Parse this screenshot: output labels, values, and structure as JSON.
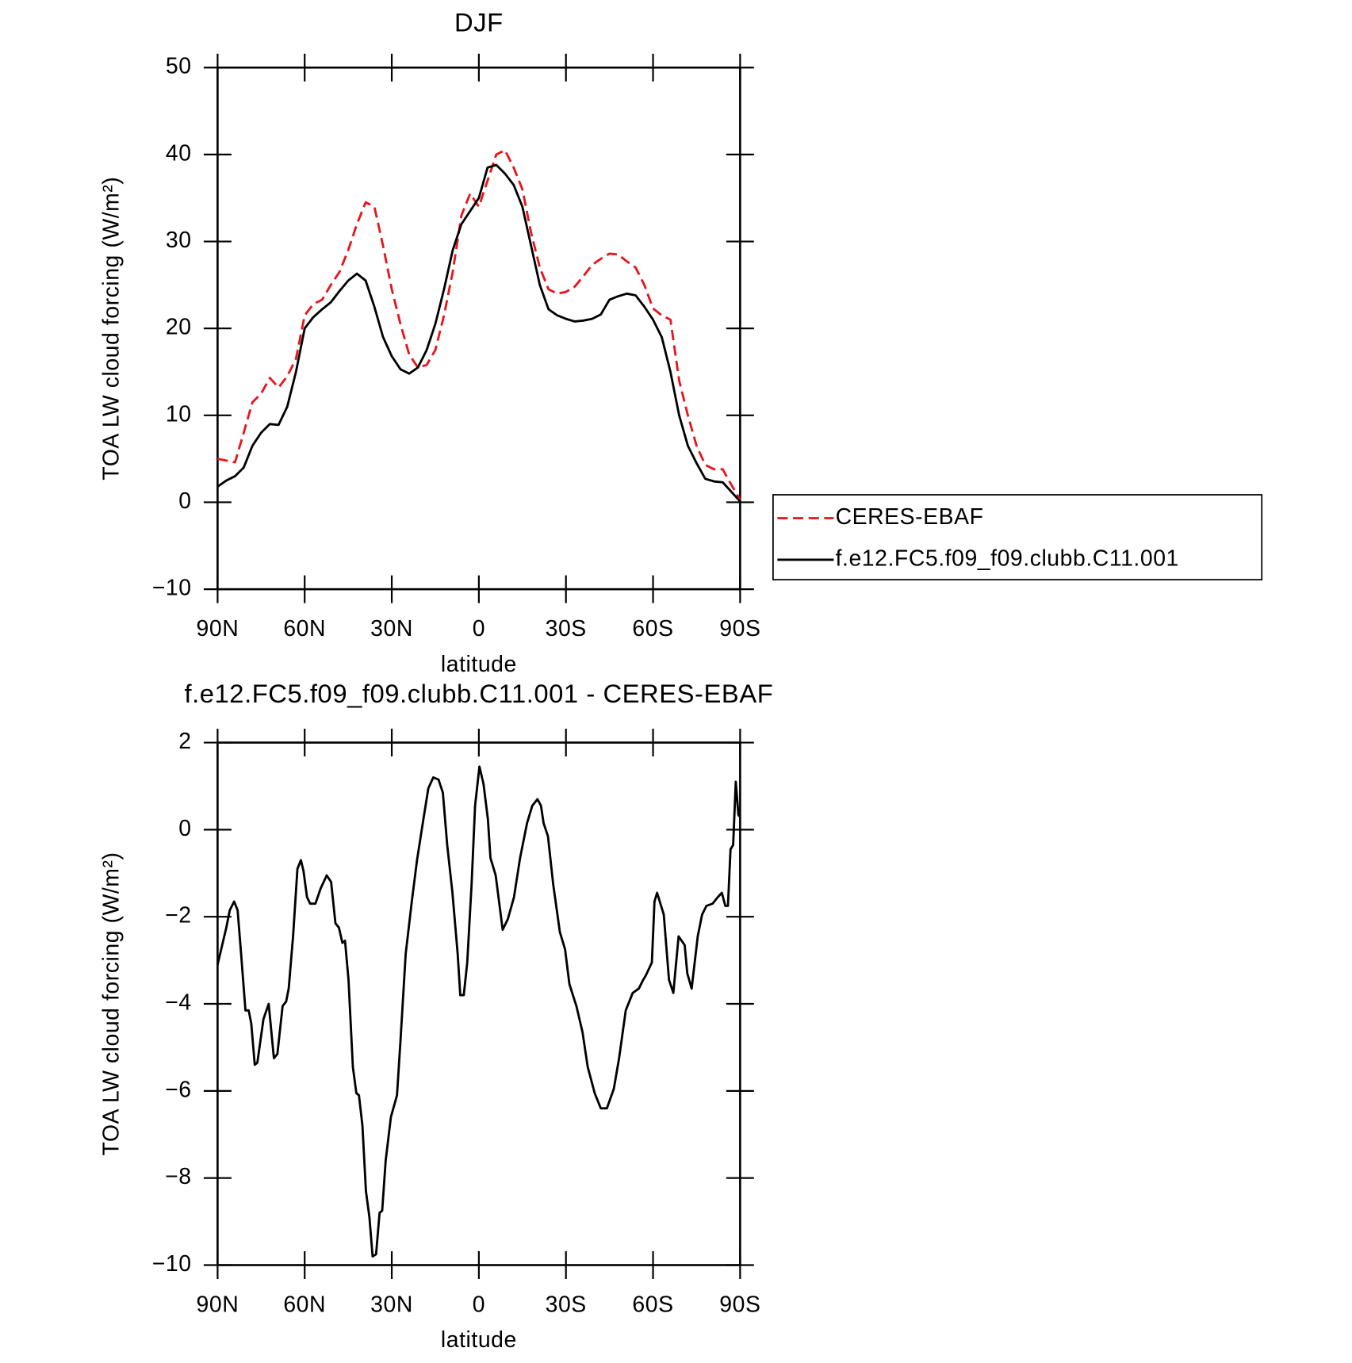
{
  "chart_data": [
    {
      "type": "line",
      "title": "DJF",
      "xlabel": "latitude",
      "ylabel": "TOA LW cloud forcing (W/m²)",
      "x": [
        90,
        87,
        84,
        81,
        78,
        75,
        72,
        69,
        66,
        63,
        60,
        57,
        54,
        51,
        48,
        45,
        42,
        39,
        36,
        33,
        30,
        27,
        24,
        21,
        18,
        15,
        12,
        9,
        6,
        3,
        0,
        -3,
        -6,
        -9,
        -12,
        -15,
        -18,
        -21,
        -24,
        -27,
        -30,
        -33,
        -36,
        -39,
        -42,
        -45,
        -48,
        -51,
        -54,
        -57,
        -60,
        -63,
        -66,
        -69,
        -72,
        -75,
        -78,
        -81,
        -84,
        -87,
        -90
      ],
      "xlim": [
        90,
        -90
      ],
      "xticks": [
        {
          "value": 90,
          "label": "90N"
        },
        {
          "value": 60,
          "label": "60N"
        },
        {
          "value": 30,
          "label": "30N"
        },
        0,
        {
          "value": -30,
          "label": "30S"
        },
        {
          "value": -60,
          "label": "60S"
        },
        {
          "value": -90,
          "label": "90S"
        }
      ],
      "ylim": [
        -10,
        50
      ],
      "yticks": [
        {
          "value": -10,
          "label": "−10"
        },
        0,
        10,
        20,
        30,
        40,
        50
      ],
      "legend": "right",
      "series": [
        {
          "name": "CERES-EBAF",
          "color": "#e8141c",
          "dash": "dashed",
          "values": [
            5.0,
            4.8,
            4.6,
            8,
            11.5,
            12.5,
            14.3,
            13.2,
            14.5,
            16.5,
            21.5,
            22.8,
            23.3,
            25,
            26.5,
            29,
            32,
            34.5,
            34,
            29.5,
            24.5,
            20.5,
            17,
            15.5,
            15.8,
            17.5,
            21.5,
            26.5,
            33,
            35.5,
            34,
            37,
            40,
            40.5,
            38.5,
            36,
            31,
            27,
            24.5,
            24,
            24.2,
            24.8,
            26,
            27.3,
            28,
            28.6,
            28.5,
            27.7,
            27,
            25,
            22.3,
            21.5,
            21,
            14,
            10,
            6.5,
            4.3,
            3.8,
            3.8,
            2,
            0.3
          ]
        },
        {
          "name": "f.e12.FC5.f09_f09.clubb.C11.001",
          "color": "#000000",
          "values": [
            1.8,
            2.5,
            3,
            4,
            6.5,
            8,
            9,
            8.9,
            11,
            15,
            20,
            21.3,
            22.2,
            23,
            24.3,
            25.5,
            26.3,
            25.5,
            22.5,
            19,
            16.8,
            15.3,
            14.8,
            15.5,
            17.5,
            20.5,
            24.5,
            29,
            32,
            33.5,
            35,
            38.5,
            38.8,
            37.8,
            36.5,
            34,
            29.5,
            25,
            22.2,
            21.5,
            21.1,
            20.8,
            20.9,
            21.1,
            21.6,
            23.3,
            23.7,
            24,
            23.8,
            22.5,
            21,
            19,
            15,
            10,
            6.5,
            4.5,
            2.7,
            2.4,
            2.3,
            1.2,
            0.1
          ]
        }
      ]
    },
    {
      "type": "line",
      "title": "f.e12.FC5.f09_f09.clubb.C11.001 - CERES-EBAF",
      "xlabel": "latitude",
      "ylabel": "TOA LW cloud forcing (W/m²)",
      "x": [
        90,
        87,
        85.8,
        84.3,
        83.1,
        81.9,
        80.4,
        79.3,
        78.4,
        77.2,
        76.3,
        74.2,
        72.4,
        70.6,
        69.4,
        67.6,
        66.4,
        65.5,
        64,
        62.5,
        61.3,
        60.4,
        59.2,
        58.1,
        56.3,
        54.5,
        52.4,
        50.9,
        49.4,
        48.2,
        47,
        46.1,
        44.9,
        43.4,
        42.2,
        41.3,
        40.1,
        38.9,
        37.7,
        36.6,
        35.4,
        34.2,
        33.3,
        32.1,
        30.3,
        28.2,
        27,
        25.2,
        23.1,
        21.3,
        19.2,
        17.4,
        15.7,
        13.9,
        12.4,
        10.9,
        9.1,
        7.3,
        6.4,
        5.2,
        4,
        2.5,
        1.3,
        -0.2,
        -1.6,
        -3.1,
        -4,
        -5.8,
        -8.2,
        -10,
        -12.1,
        -14.2,
        -16.6,
        -18.4,
        -20.2,
        -21.4,
        -22.3,
        -23.8,
        -25.6,
        -27.9,
        -29.7,
        -31.2,
        -33.6,
        -35.7,
        -37.5,
        -39.9,
        -42,
        -44.1,
        -46.5,
        -48.3,
        -50.6,
        -53,
        -55.1,
        -56.6,
        -57.5,
        -59.6,
        -60.5,
        -61.4,
        -63.7,
        -65.5,
        -67,
        -68.8,
        -70.9,
        -71.8,
        -73.3,
        -75.4,
        -76.9,
        -78.4,
        -80.5,
        -82.3,
        -83.7,
        -84.9,
        -85.8,
        -86.7,
        -87.6,
        -88.5,
        -89.4,
        -89.7
      ],
      "xlim": [
        90,
        -90
      ],
      "xticks": [
        {
          "value": 90,
          "label": "90N"
        },
        {
          "value": 60,
          "label": "60N"
        },
        {
          "value": 30,
          "label": "30N"
        },
        0,
        {
          "value": -30,
          "label": "30S"
        },
        {
          "value": -60,
          "label": "60S"
        },
        {
          "value": -90,
          "label": "90S"
        }
      ],
      "ylim": [
        -10,
        2
      ],
      "yticks": [
        {
          "value": -10,
          "label": "−10"
        },
        {
          "value": -8,
          "label": "−8"
        },
        {
          "value": -6,
          "label": "−6"
        },
        {
          "value": -4,
          "label": "−4"
        },
        {
          "value": -2,
          "label": "−2"
        },
        0,
        2
      ],
      "series": [
        {
          "color": "#000000",
          "values": [
            -3.1,
            -2.25,
            -1.85,
            -1.65,
            -1.85,
            -2.85,
            -4.15,
            -4.15,
            -4.45,
            -5.4,
            -5.35,
            -4.35,
            -4.0,
            -5.25,
            -5.15,
            -4.05,
            -3.95,
            -3.65,
            -2.45,
            -0.9,
            -0.7,
            -0.95,
            -1.55,
            -1.7,
            -1.7,
            -1.35,
            -1.05,
            -1.2,
            -2.15,
            -2.25,
            -2.6,
            -2.55,
            -3.45,
            -5.45,
            -6.05,
            -6.1,
            -6.8,
            -8.3,
            -8.9,
            -9.8,
            -9.75,
            -8.8,
            -8.75,
            -7.6,
            -6.6,
            -6.1,
            -4.85,
            -2.85,
            -1.65,
            -0.7,
            0.2,
            0.95,
            1.2,
            1.15,
            0.85,
            -0.35,
            -1.45,
            -2.85,
            -3.8,
            -3.8,
            -3.05,
            -1.25,
            0.55,
            1.45,
            1.05,
            0.25,
            -0.65,
            -1.05,
            -2.3,
            -2.05,
            -1.55,
            -0.65,
            0.15,
            0.55,
            0.7,
            0.55,
            0.15,
            -0.15,
            -1.25,
            -2.35,
            -2.75,
            -3.55,
            -4.05,
            -4.65,
            -5.45,
            -6.05,
            -6.4,
            -6.4,
            -5.95,
            -5.25,
            -4.15,
            -3.75,
            -3.65,
            -3.45,
            -3.35,
            -3.05,
            -1.65,
            -1.45,
            -1.95,
            -3.45,
            -3.75,
            -2.45,
            -2.65,
            -3.3,
            -3.65,
            -2.45,
            -1.95,
            -1.75,
            -1.7,
            -1.55,
            -1.45,
            -1.75,
            -1.75,
            -0.45,
            -0.35,
            1.1,
            0.35,
            0.3
          ]
        }
      ]
    }
  ]
}
